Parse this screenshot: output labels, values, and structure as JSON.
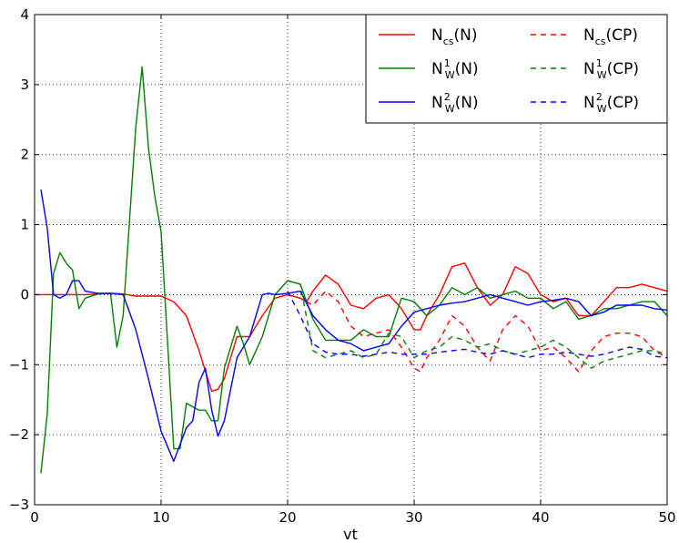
{
  "chart_data": {
    "type": "line",
    "xlabel": "vt",
    "ylabel": "",
    "xlim": [
      0,
      50
    ],
    "ylim": [
      -3,
      4
    ],
    "xticks": [
      0,
      10,
      20,
      30,
      40,
      50
    ],
    "yticks": [
      -3,
      -2,
      -1,
      0,
      1,
      2,
      3,
      4
    ],
    "xtick_labels": [
      "0",
      "10",
      "20",
      "30",
      "40",
      "50"
    ],
    "ytick_labels": [
      "−3",
      "−2",
      "−1",
      "0",
      "1",
      "2",
      "3",
      "4"
    ],
    "grid": true,
    "legend": {
      "placement": "top-right",
      "columns": 2,
      "entries": [
        {
          "series": 0,
          "label": "N",
          "sub": "cs",
          "sup": "",
          "suffix": "(N)"
        },
        {
          "series": 1,
          "label": "N",
          "sub": "W",
          "sup": "1",
          "suffix": "(N)"
        },
        {
          "series": 2,
          "label": "N",
          "sub": "W",
          "sup": "2",
          "suffix": "(N)"
        },
        {
          "series": 3,
          "label": "N",
          "sub": "cs",
          "sup": "",
          "suffix": "(CP)"
        },
        {
          "series": 4,
          "label": "N",
          "sub": "W",
          "sup": "1",
          "suffix": "(CP)"
        },
        {
          "series": 5,
          "label": "N",
          "sub": "W",
          "sup": "2",
          "suffix": "(CP)"
        }
      ]
    },
    "series": [
      {
        "color": "#ff0000",
        "dash": "solid",
        "points": [
          [
            0,
            0
          ],
          [
            1,
            0
          ],
          [
            2,
            0
          ],
          [
            3,
            0
          ],
          [
            4,
            0
          ],
          [
            5,
            0.01
          ],
          [
            6,
            0.02
          ],
          [
            7,
            0.01
          ],
          [
            8,
            -0.02
          ],
          [
            9,
            -0.02
          ],
          [
            10,
            -0.02
          ],
          [
            11,
            -0.1
          ],
          [
            12,
            -0.3
          ],
          [
            13,
            -0.8
          ],
          [
            14,
            -1.38
          ],
          [
            14.5,
            -1.35
          ],
          [
            15,
            -1.2
          ],
          [
            16,
            -0.6
          ],
          [
            17,
            -0.6
          ],
          [
            18,
            -0.3
          ],
          [
            19,
            -0.05
          ],
          [
            20,
            0
          ],
          [
            21,
            -0.05
          ],
          [
            21.5,
            -0.1
          ],
          [
            22,
            0.05
          ],
          [
            23,
            0.28
          ],
          [
            24,
            0.15
          ],
          [
            25,
            -0.15
          ],
          [
            26,
            -0.2
          ],
          [
            27,
            -0.05
          ],
          [
            28,
            0
          ],
          [
            29,
            -0.2
          ],
          [
            30,
            -0.5
          ],
          [
            30.5,
            -0.5
          ],
          [
            31,
            -0.3
          ],
          [
            32,
            0
          ],
          [
            33,
            0.4
          ],
          [
            34,
            0.45
          ],
          [
            35,
            0.1
          ],
          [
            36,
            -0.15
          ],
          [
            37,
            0
          ],
          [
            38,
            0.4
          ],
          [
            39,
            0.3
          ],
          [
            40,
            0
          ],
          [
            41,
            -0.1
          ],
          [
            42,
            -0.05
          ],
          [
            43,
            -0.3
          ],
          [
            44,
            -0.3
          ],
          [
            45,
            -0.1
          ],
          [
            46,
            0.1
          ],
          [
            47,
            0.1
          ],
          [
            48,
            0.15
          ],
          [
            49,
            0.1
          ],
          [
            50,
            0.05
          ]
        ]
      },
      {
        "color": "#008000",
        "dash": "solid",
        "points": [
          [
            0.5,
            -2.55
          ],
          [
            1,
            -1.7
          ],
          [
            1.5,
            0.3
          ],
          [
            2,
            0.6
          ],
          [
            2.5,
            0.45
          ],
          [
            3,
            0.35
          ],
          [
            3.5,
            -0.2
          ],
          [
            4,
            -0.05
          ],
          [
            5,
            0.01
          ],
          [
            6,
            0.02
          ],
          [
            6.5,
            -0.75
          ],
          [
            7,
            -0.3
          ],
          [
            8,
            2.4
          ],
          [
            8.5,
            3.25
          ],
          [
            9,
            2.1
          ],
          [
            9.5,
            1.4
          ],
          [
            10,
            0.9
          ],
          [
            11,
            -2.2
          ],
          [
            11.5,
            -2.2
          ],
          [
            12,
            -1.55
          ],
          [
            13,
            -1.65
          ],
          [
            13.5,
            -1.65
          ],
          [
            14,
            -1.8
          ],
          [
            14.5,
            -1.8
          ],
          [
            15,
            -1.05
          ],
          [
            16,
            -0.45
          ],
          [
            16.5,
            -0.7
          ],
          [
            17,
            -1.0
          ],
          [
            18,
            -0.6
          ],
          [
            19,
            0
          ],
          [
            20,
            0.2
          ],
          [
            21,
            0.15
          ],
          [
            22,
            -0.35
          ],
          [
            23,
            -0.65
          ],
          [
            24,
            -0.65
          ],
          [
            25,
            -0.65
          ],
          [
            26,
            -0.5
          ],
          [
            27,
            -0.6
          ],
          [
            28,
            -0.6
          ],
          [
            29,
            -0.05
          ],
          [
            30,
            -0.1
          ],
          [
            31,
            -0.3
          ],
          [
            32,
            -0.15
          ],
          [
            33,
            0.1
          ],
          [
            34,
            0
          ],
          [
            35,
            0.1
          ],
          [
            36,
            -0.05
          ],
          [
            37,
            0
          ],
          [
            38,
            0.05
          ],
          [
            39,
            -0.05
          ],
          [
            40,
            -0.05
          ],
          [
            41,
            -0.2
          ],
          [
            42,
            -0.1
          ],
          [
            43,
            -0.35
          ],
          [
            44,
            -0.3
          ],
          [
            45,
            -0.2
          ],
          [
            46,
            -0.2
          ],
          [
            47,
            -0.15
          ],
          [
            48,
            -0.1
          ],
          [
            49,
            -0.1
          ],
          [
            50,
            -0.3
          ]
        ]
      },
      {
        "color": "#0000ff",
        "dash": "solid",
        "points": [
          [
            0.5,
            1.5
          ],
          [
            1,
            0.95
          ],
          [
            1.5,
            0
          ],
          [
            2,
            -0.05
          ],
          [
            2.5,
            0
          ],
          [
            3,
            0.2
          ],
          [
            3.5,
            0.2
          ],
          [
            4,
            0.05
          ],
          [
            5,
            0.02
          ],
          [
            6,
            0.02
          ],
          [
            7,
            0
          ],
          [
            8,
            -0.5
          ],
          [
            9,
            -1.2
          ],
          [
            10,
            -1.95
          ],
          [
            11,
            -2.38
          ],
          [
            12,
            -1.9
          ],
          [
            12.5,
            -1.8
          ],
          [
            13,
            -1.25
          ],
          [
            13.5,
            -1.05
          ],
          [
            14,
            -1.65
          ],
          [
            14.5,
            -2.02
          ],
          [
            15,
            -1.8
          ],
          [
            16,
            -0.9
          ],
          [
            17,
            -0.6
          ],
          [
            18,
            0
          ],
          [
            18.5,
            0.02
          ],
          [
            19,
            0
          ],
          [
            20,
            0.02
          ],
          [
            21,
            0.05
          ],
          [
            22,
            -0.3
          ],
          [
            23,
            -0.5
          ],
          [
            24,
            -0.65
          ],
          [
            25,
            -0.7
          ],
          [
            26,
            -0.8
          ],
          [
            27,
            -0.75
          ],
          [
            28,
            -0.7
          ],
          [
            29,
            -0.45
          ],
          [
            30,
            -0.25
          ],
          [
            31,
            -0.2
          ],
          [
            32,
            -0.15
          ],
          [
            33,
            -0.12
          ],
          [
            34,
            -0.1
          ],
          [
            35,
            -0.05
          ],
          [
            36,
            0
          ],
          [
            37,
            -0.05
          ],
          [
            38,
            -0.1
          ],
          [
            39,
            -0.15
          ],
          [
            40,
            -0.1
          ],
          [
            41,
            -0.08
          ],
          [
            42,
            -0.05
          ],
          [
            43,
            -0.1
          ],
          [
            44,
            -0.3
          ],
          [
            45,
            -0.25
          ],
          [
            46,
            -0.15
          ],
          [
            47,
            -0.15
          ],
          [
            48,
            -0.15
          ],
          [
            49,
            -0.2
          ],
          [
            50,
            -0.22
          ]
        ]
      },
      {
        "color": "#ff0000",
        "dash": "dashed",
        "points": [
          [
            20,
            0
          ],
          [
            21,
            -0.05
          ],
          [
            22,
            -0.15
          ],
          [
            23,
            0.05
          ],
          [
            24,
            -0.1
          ],
          [
            25,
            -0.45
          ],
          [
            26,
            -0.6
          ],
          [
            27,
            -0.55
          ],
          [
            28,
            -0.5
          ],
          [
            29,
            -0.75
          ],
          [
            30,
            -1.05
          ],
          [
            30.5,
            -1.1
          ],
          [
            31,
            -0.9
          ],
          [
            32,
            -0.65
          ],
          [
            33,
            -0.3
          ],
          [
            34,
            -0.45
          ],
          [
            35,
            -0.75
          ],
          [
            36,
            -0.95
          ],
          [
            37,
            -0.5
          ],
          [
            38,
            -0.3
          ],
          [
            39,
            -0.45
          ],
          [
            40,
            -0.8
          ],
          [
            41,
            -0.75
          ],
          [
            42,
            -0.9
          ],
          [
            43,
            -1.1
          ],
          [
            44,
            -0.8
          ],
          [
            45,
            -0.6
          ],
          [
            46,
            -0.55
          ],
          [
            47,
            -0.55
          ],
          [
            48,
            -0.6
          ],
          [
            49,
            -0.8
          ],
          [
            50,
            -0.9
          ]
        ]
      },
      {
        "color": "#008000",
        "dash": "dashed",
        "points": [
          [
            20,
            0.2
          ],
          [
            21,
            0.15
          ],
          [
            22,
            -0.8
          ],
          [
            23,
            -0.9
          ],
          [
            24,
            -0.85
          ],
          [
            25,
            -0.8
          ],
          [
            26,
            -0.9
          ],
          [
            27,
            -0.85
          ],
          [
            28,
            -0.55
          ],
          [
            29,
            -0.6
          ],
          [
            30,
            -0.9
          ],
          [
            31,
            -0.8
          ],
          [
            32,
            -0.75
          ],
          [
            33,
            -0.6
          ],
          [
            34,
            -0.65
          ],
          [
            35,
            -0.75
          ],
          [
            36,
            -0.7
          ],
          [
            37,
            -0.8
          ],
          [
            38,
            -0.85
          ],
          [
            39,
            -0.8
          ],
          [
            40,
            -0.75
          ],
          [
            41,
            -0.65
          ],
          [
            42,
            -0.75
          ],
          [
            43,
            -0.9
          ],
          [
            44,
            -1.05
          ],
          [
            45,
            -0.95
          ],
          [
            46,
            -0.9
          ],
          [
            47,
            -0.85
          ],
          [
            48,
            -0.8
          ],
          [
            49,
            -0.8
          ],
          [
            50,
            -0.85
          ]
        ]
      },
      {
        "color": "#0000ff",
        "dash": "dashed",
        "points": [
          [
            20,
            0.05
          ],
          [
            21,
            -0.3
          ],
          [
            22,
            -0.7
          ],
          [
            23,
            -0.82
          ],
          [
            24,
            -0.85
          ],
          [
            25,
            -0.85
          ],
          [
            26,
            -0.88
          ],
          [
            27,
            -0.85
          ],
          [
            28,
            -0.82
          ],
          [
            29,
            -0.85
          ],
          [
            30,
            -0.85
          ],
          [
            31,
            -0.85
          ],
          [
            32,
            -0.82
          ],
          [
            33,
            -0.8
          ],
          [
            34,
            -0.78
          ],
          [
            35,
            -0.82
          ],
          [
            36,
            -0.85
          ],
          [
            37,
            -0.8
          ],
          [
            38,
            -0.85
          ],
          [
            39,
            -0.9
          ],
          [
            40,
            -0.85
          ],
          [
            41,
            -0.85
          ],
          [
            42,
            -0.82
          ],
          [
            43,
            -0.85
          ],
          [
            44,
            -0.88
          ],
          [
            45,
            -0.85
          ],
          [
            46,
            -0.8
          ],
          [
            47,
            -0.75
          ],
          [
            48,
            -0.78
          ],
          [
            49,
            -0.88
          ],
          [
            50,
            -0.9
          ]
        ]
      }
    ]
  }
}
